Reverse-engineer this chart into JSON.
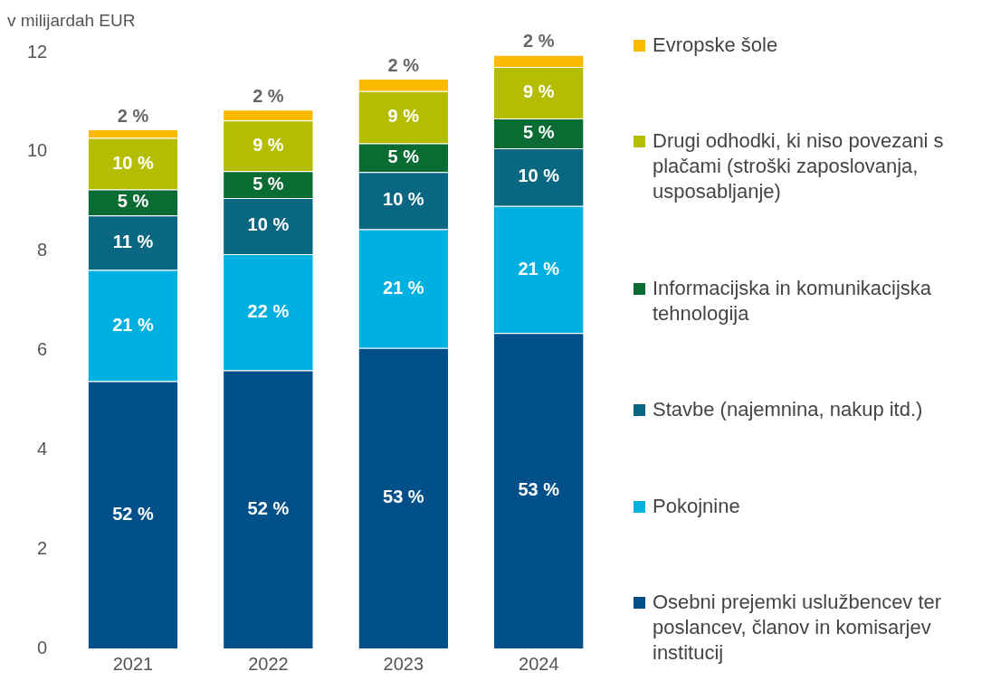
{
  "chart_data": {
    "type": "bar",
    "stacked": true,
    "ylabel": "v milijardah EUR",
    "categories": [
      "2021",
      "2022",
      "2023",
      "2024"
    ],
    "ylim": [
      0,
      12
    ],
    "yticks": [
      0,
      2,
      4,
      6,
      8,
      10,
      12
    ],
    "grid": false,
    "legend": "right",
    "series": [
      {
        "name": "Osebni prejemki uslužbencev ter poslancev, članov in komisarjev institucij",
        "color": "#02508a",
        "values": [
          5.38,
          5.6,
          6.05,
          6.35
        ]
      },
      {
        "name": "Pokojnine",
        "color": "#00b0e0",
        "values": [
          2.24,
          2.34,
          2.39,
          2.56
        ]
      },
      {
        "name": "Stavbe (najemnina, nakup itd.)",
        "color": "#0a6782",
        "values": [
          1.1,
          1.13,
          1.15,
          1.16
        ]
      },
      {
        "name": "Informacijska in komunikacijska tehnologija",
        "color": "#0a6b33",
        "values": [
          0.52,
          0.54,
          0.58,
          0.6
        ]
      },
      {
        "name": "Drugi odhodki, ki niso povezani s plačami (stroški zaposlovanja, usposabljanje)",
        "color": "#b5bd00",
        "values": [
          1.04,
          1.02,
          1.05,
          1.04
        ]
      },
      {
        "name": "Evropske šole",
        "color": "#fbba00",
        "values": [
          0.17,
          0.22,
          0.25,
          0.24
        ]
      }
    ],
    "annotations": [
      "52 %",
      "52 %",
      "53 %",
      "53 %",
      {
        "text": "21 %",
        "x": "2021",
        "y": 7.62
      },
      {
        "text": "11 %",
        "x": "2021",
        "y": 8.72
      },
      {
        "text": "5 %",
        "x": "2021",
        "y": 9.24
      },
      {
        "text": "10 %",
        "x": "2021",
        "y": 10.28
      },
      {
        "text": "2 %",
        "x": "2021",
        "y": 10.45
      },
      {
        "text": "22 %",
        "x": "2022",
        "y": 7.94
      },
      {
        "text": "10 %",
        "x": "2022",
        "y": 9.07
      },
      {
        "text": "5 %",
        "x": "2022",
        "y": 9.61
      },
      {
        "text": "9 %",
        "x": "2022",
        "y": 10.63
      },
      {
        "text": "2 %",
        "x": "2022",
        "y": 10.85
      },
      {
        "text": "21 %",
        "x": "2023",
        "y": 8.44
      },
      {
        "text": "10 %",
        "x": "2023",
        "y": 9.59
      },
      {
        "text": "5 %",
        "x": "2023",
        "y": 10.17
      },
      {
        "text": "9 %",
        "x": "2023",
        "y": 11.22
      },
      {
        "text": "2 %",
        "x": "2023",
        "y": 11.47
      },
      {
        "text": "21 %",
        "x": "2024",
        "y": 8.91
      },
      {
        "text": "10 %",
        "x": "2024",
        "y": 10.07
      },
      {
        "text": "5 %",
        "x": "2024",
        "y": 10.67
      },
      {
        "text": "9 %",
        "x": "2024",
        "y": 11.71
      },
      {
        "text": "2 %",
        "x": "2024",
        "y": 11.95
      }
    ]
  }
}
